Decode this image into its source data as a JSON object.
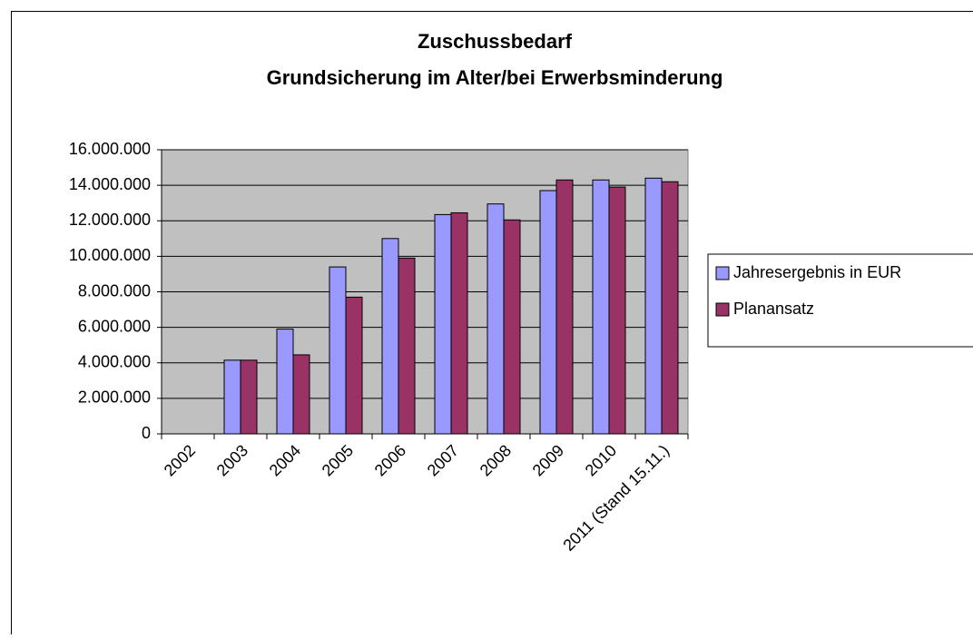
{
  "chart_data": {
    "type": "bar",
    "title": [
      "Zuschussbedarf",
      "Grundsicherung im Alter/bei Erwerbsminderung"
    ],
    "categories": [
      "2002",
      "2003",
      "2004",
      "2005",
      "2006",
      "2007",
      "2008",
      "2009",
      "2010",
      "2011 (Stand 15.11.)"
    ],
    "series": [
      {
        "name": "Jahresergebnis in EUR",
        "color": "#9999ff",
        "values": [
          null,
          4150000,
          5900000,
          9400000,
          11000000,
          12350000,
          12950000,
          13700000,
          14300000,
          14400000
        ]
      },
      {
        "name": "Planansatz",
        "color": "#993366",
        "values": [
          null,
          4150000,
          4450000,
          7700000,
          9900000,
          12450000,
          12050000,
          14300000,
          13900000,
          14200000
        ]
      }
    ],
    "ylim": [
      0,
      16000000
    ],
    "yticks": [
      {
        "value": 0,
        "label": "0"
      },
      {
        "value": 2000000,
        "label": "2.000.000"
      },
      {
        "value": 4000000,
        "label": "4.000.000"
      },
      {
        "value": 6000000,
        "label": "6.000.000"
      },
      {
        "value": 8000000,
        "label": "8.000.000"
      },
      {
        "value": 10000000,
        "label": "10.000.000"
      },
      {
        "value": 12000000,
        "label": "12.000.000"
      },
      {
        "value": 14000000,
        "label": "14.000.000"
      },
      {
        "value": 16000000,
        "label": "16.000.000"
      }
    ],
    "grid": true,
    "legend": "right",
    "plot_background": "#c0c0c0"
  }
}
